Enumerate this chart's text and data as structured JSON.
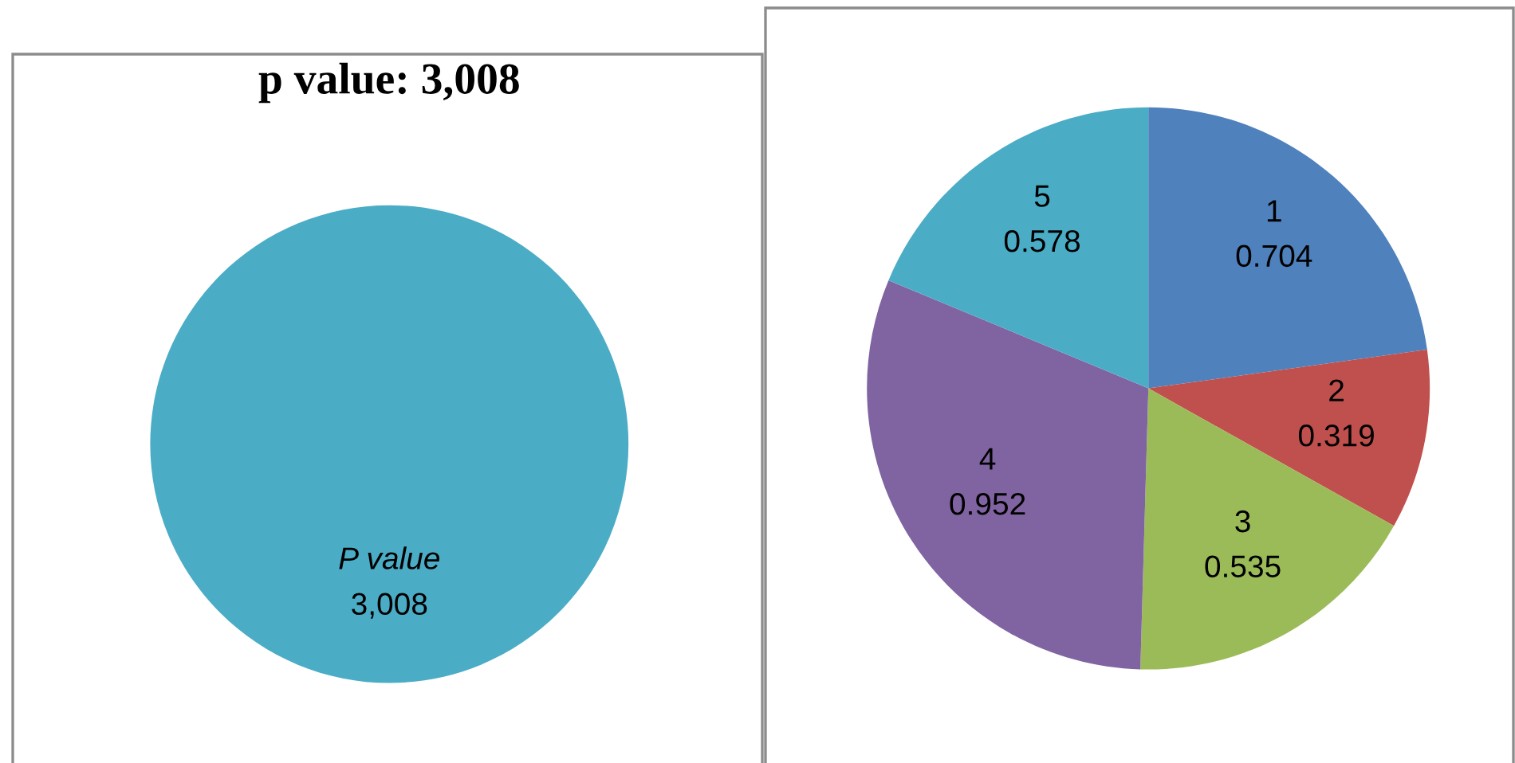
{
  "chart_data": [
    {
      "type": "pie",
      "title": "p value: 3,008",
      "categories": [
        "P value"
      ],
      "values": [
        3008
      ],
      "colors": [
        "#4bacc6"
      ],
      "value_labels": [
        "3,008"
      ]
    },
    {
      "type": "pie",
      "categories": [
        "1",
        "2",
        "3",
        "4",
        "5"
      ],
      "values": [
        0.704,
        0.319,
        0.535,
        0.952,
        0.578
      ],
      "colors": [
        "#4f81bd",
        "#c0504d",
        "#9bbb59",
        "#8064a2",
        "#4bacc6"
      ],
      "data_labels": true
    }
  ]
}
